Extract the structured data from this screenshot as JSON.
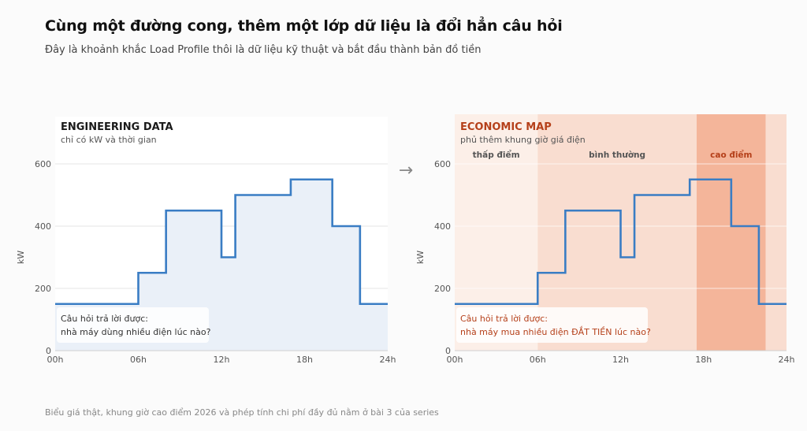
{
  "header": {
    "title": "Cùng một đường cong, thêm một lớp dữ liệu là đổi hẳn câu hỏi",
    "subtitle": "Đây là khoảnh khắc Load Profile thôi là dữ liệu kỹ thuật và bắt đầu thành bản đồ tiền"
  },
  "footnote": "Biểu giá thật, khung giờ cao điểm 2026 và phép tính chi phí đầy đủ nằm ở bài 3 của series",
  "arrow": "→",
  "chart_data": [
    {
      "type": "line",
      "step": true,
      "title": "ENGINEERING DATA",
      "subtitle": "chỉ có kW và thời gian",
      "ylabel": "kW",
      "xlabel": "",
      "xlim": [
        0,
        24
      ],
      "ylim": [
        0,
        600
      ],
      "x_ticks": [
        0,
        6,
        12,
        18,
        24
      ],
      "x_tick_labels": [
        "00h",
        "06h",
        "12h",
        "18h",
        "24h"
      ],
      "y_ticks": [
        0,
        200,
        400,
        600
      ],
      "y_tick_labels": [
        "0",
        "200",
        "400",
        "600"
      ],
      "grid": true,
      "area_fill": true,
      "series": [
        {
          "x": [
            0,
            6,
            8,
            12,
            13,
            17,
            20,
            22,
            24
          ],
          "values": [
            150,
            250,
            450,
            300,
            500,
            550,
            400,
            150,
            150
          ]
        }
      ],
      "annotation": {
        "line1": "Câu hỏi trả lời được:",
        "line2": "nhà máy dùng nhiều điện lúc nào?"
      },
      "colors": {
        "line": "#3a7dc4",
        "fill": "#eaf0f8",
        "title": "#1a1a1a",
        "annotation": "#333333"
      }
    },
    {
      "type": "line",
      "step": true,
      "title": "ECONOMIC MAP",
      "subtitle": "phủ thêm khung giờ giá điện",
      "ylabel": "kW",
      "xlabel": "",
      "xlim": [
        0,
        24
      ],
      "ylim": [
        0,
        600
      ],
      "x_ticks": [
        0,
        6,
        12,
        18,
        24
      ],
      "x_tick_labels": [
        "00h",
        "06h",
        "12h",
        "18h",
        "24h"
      ],
      "y_ticks": [
        0,
        200,
        400,
        600
      ],
      "y_tick_labels": [
        "0",
        "200",
        "400",
        "600"
      ],
      "grid": true,
      "area_fill": false,
      "series": [
        {
          "x": [
            0,
            6,
            8,
            12,
            13,
            17,
            20,
            22,
            24
          ],
          "values": [
            150,
            250,
            450,
            300,
            500,
            550,
            400,
            150,
            150
          ]
        }
      ],
      "bands": [
        {
          "label": "thấp điểm",
          "start": 0,
          "end": 6,
          "color": "#fcefe8",
          "label_color": "#555555"
        },
        {
          "label": "bình thường",
          "start": 6,
          "end": 17.5,
          "color": "#f9ddd0",
          "label_color": "#555555"
        },
        {
          "label": "cao điểm",
          "start": 17.5,
          "end": 22.5,
          "color": "#f4b59a",
          "label_color": "#b5401a"
        },
        {
          "label": "",
          "start": 22.5,
          "end": 24,
          "color": "#f9ddd0",
          "label_color": "#555555"
        }
      ],
      "annotation": {
        "line1": "Câu hỏi trả lời được:",
        "line2": "nhà máy mua nhiều điện ĐẮT TIỀN lúc nào?"
      },
      "colors": {
        "line": "#3a7dc4",
        "title": "#b5401a",
        "annotation": "#b5401a"
      }
    }
  ]
}
